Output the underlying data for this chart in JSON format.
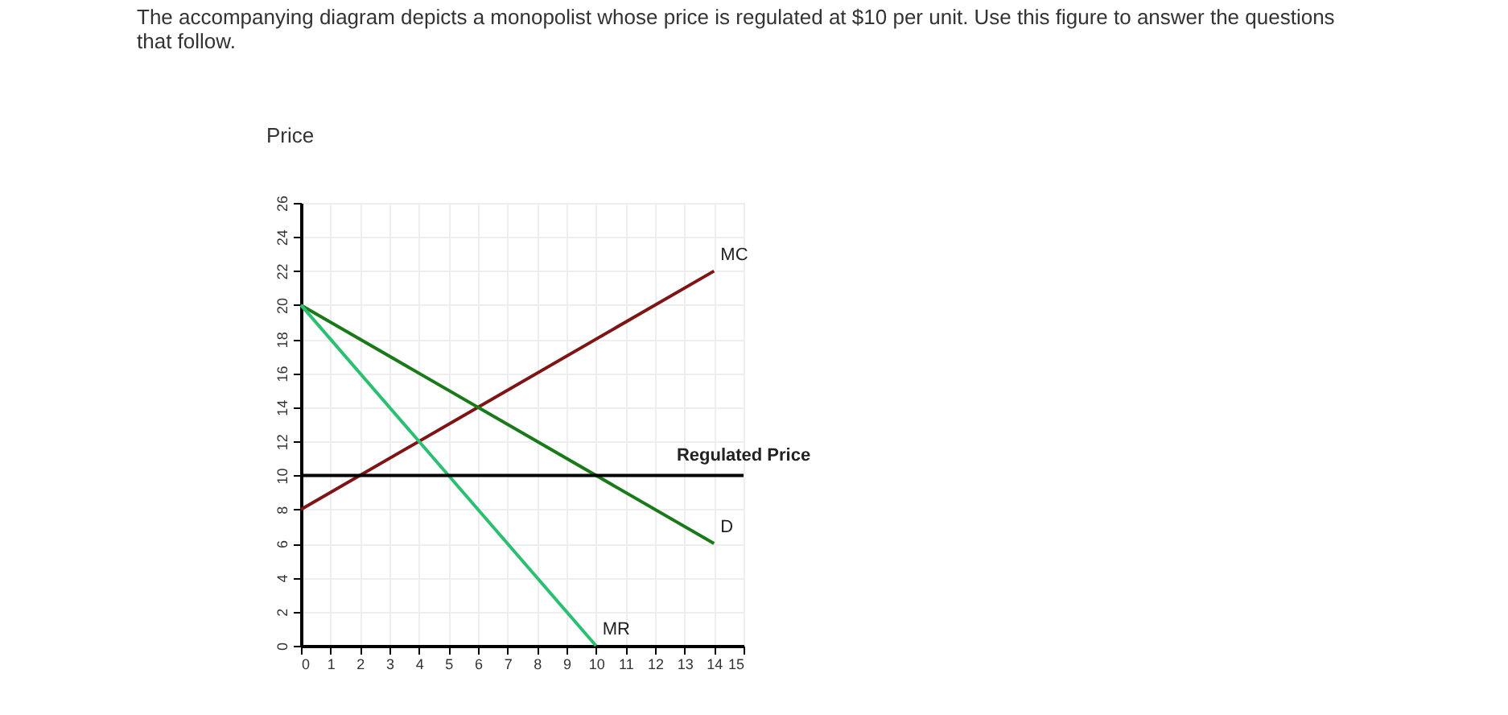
{
  "chart_data": {
    "type": "line",
    "title": "The accompanying diagram depicts a monopolist whose price is regulated at $10 per unit. Use this figure to answer the questions that follow.",
    "ylabel": "Price",
    "series": [
      {
        "name": "MC",
        "color": "#7f1414",
        "x": [
          0,
          14
        ],
        "values": [
          8,
          22
        ]
      },
      {
        "name": "D",
        "color": "#1a7a1a",
        "x": [
          0,
          14
        ],
        "values": [
          20,
          6
        ]
      },
      {
        "name": "MR",
        "color": "#2bbf72",
        "x": [
          0,
          10
        ],
        "values": [
          20,
          0
        ]
      }
    ],
    "ref_lines": [
      {
        "axis": "y",
        "value": 10,
        "label": "Regulated Price",
        "color": "#000000"
      }
    ],
    "xlim": [
      0,
      15
    ],
    "xticks": [
      0,
      1,
      2,
      3,
      4,
      5,
      6,
      7,
      8,
      9,
      10,
      11,
      12,
      13,
      14,
      15
    ],
    "ylim": [
      0,
      26
    ],
    "yticks": [
      0,
      2,
      4,
      6,
      8,
      10,
      12,
      14,
      16,
      18,
      20,
      22,
      24,
      26
    ],
    "grid": true,
    "marker": "none",
    "line_style": "solid"
  }
}
